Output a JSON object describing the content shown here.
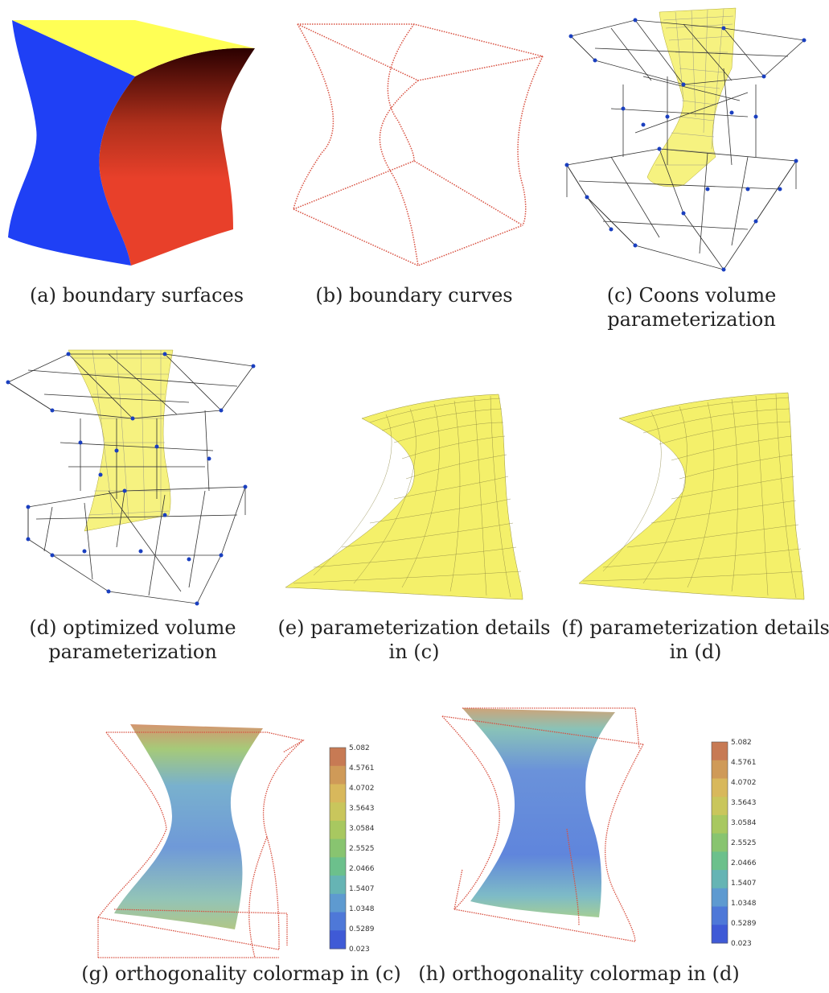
{
  "captions": {
    "a": [
      "(a) boundary surfaces"
    ],
    "b": [
      "(b) boundary curves"
    ],
    "c": [
      "(c) Coons volume",
      "parameterization"
    ],
    "d": [
      "(d) optimized volume",
      "parameterization"
    ],
    "e": [
      "(e) parameterization details",
      "in (c)"
    ],
    "f": [
      "(f) parameterization details",
      "in (d)"
    ],
    "g": [
      "(g) orthogonality colormap in (c)"
    ],
    "h": [
      "(h) orthogonality colormap in (d)"
    ]
  },
  "colorbar": {
    "ticks": [
      "5.082",
      "4.5761",
      "4.0702",
      "3.5643",
      "3.0584",
      "2.5525",
      "2.0466",
      "1.5407",
      "1.0348",
      "0.5289",
      "0.023"
    ],
    "colors": [
      "#c77a54",
      "#cf9a58",
      "#d8b85c",
      "#c9c65c",
      "#a8c860",
      "#88c470",
      "#6cc08c",
      "#66b4b4",
      "#5e9ad0",
      "#4e78d8",
      "#3f5ad6"
    ]
  },
  "colors": {
    "blue": "#1f40f5",
    "red": "#e8402a",
    "yellow": "#ffff55",
    "curve": "#d85040",
    "mesh": "#333333",
    "node": "#1a3fbf",
    "surfaceYellow": "#f4f06a"
  }
}
